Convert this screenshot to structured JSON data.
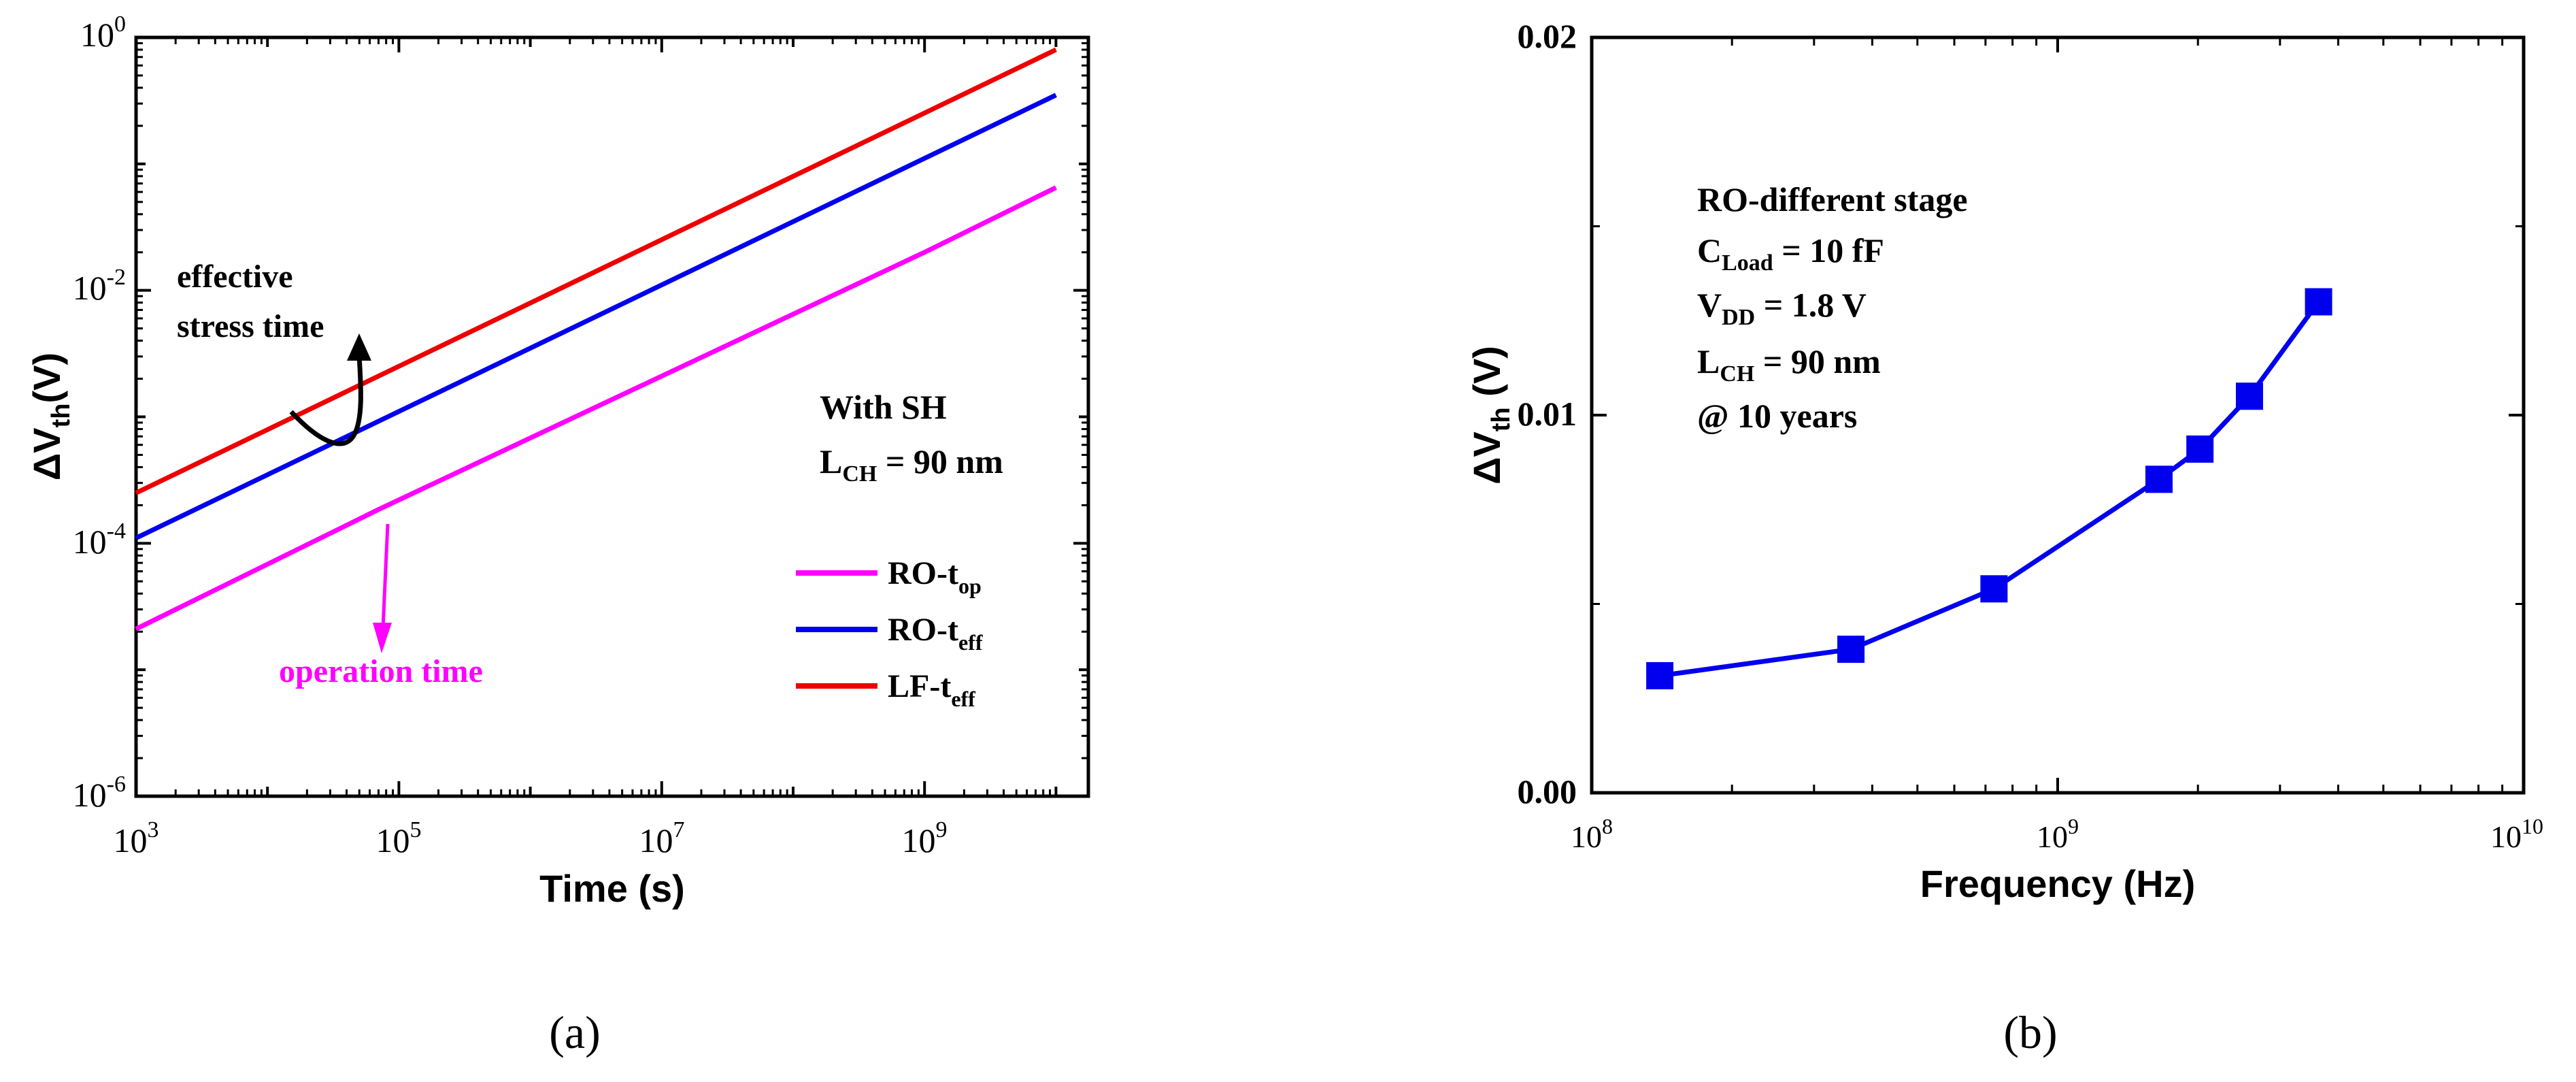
{
  "colors": {
    "ro_top": "#ff00ff",
    "ro_teff": "#0000ee",
    "lf_teff": "#ee0000",
    "markers": "#0000ee",
    "axis": "#000000",
    "annotation_op": "#ff00ff"
  },
  "chart_data": [
    {
      "id": "a",
      "panel_label": "(a)",
      "type": "line",
      "xscale": "log",
      "yscale": "log",
      "xlim": [
        1000,
        20000000000
      ],
      "ylim": [
        1e-06,
        1
      ],
      "xlabel": "Time (s)",
      "ylabel": {
        "prefix": "ΔV",
        "sub": "th",
        "suffix": "(V)"
      },
      "x_ticks": [
        {
          "base": "10",
          "exp": "3",
          "value": 1000
        },
        {
          "base": "10",
          "exp": "5",
          "value": 100000
        },
        {
          "base": "10",
          "exp": "7",
          "value": 10000000
        },
        {
          "base": "10",
          "exp": "9",
          "value": 1000000000
        }
      ],
      "y_ticks": [
        {
          "base": "10",
          "exp": "-6",
          "value": 1e-06
        },
        {
          "base": "10",
          "exp": "-4",
          "value": 0.0001
        },
        {
          "base": "10",
          "exp": "-2",
          "value": 0.01
        },
        {
          "base": "10",
          "exp": "0",
          "value": 1
        }
      ],
      "series": [
        {
          "name": "RO-t",
          "sub": "op",
          "color_key": "ro_top",
          "x": [
            1000,
            70000,
            1000000000,
            10000000000
          ],
          "y": [
            2.1e-05,
            0.000185,
            0.02,
            0.065
          ]
        },
        {
          "name": "RO-t",
          "sub": "eff",
          "color_key": "ro_teff",
          "x": [
            1000,
            10000000000
          ],
          "y": [
            0.00011,
            0.35
          ]
        },
        {
          "name": "LF-t",
          "sub": "eff",
          "color_key": "lf_teff",
          "x": [
            1000,
            10000000000
          ],
          "y": [
            0.00025,
            0.8
          ]
        }
      ],
      "legend_position": "bottom-right",
      "condition_text": {
        "line1": "With SH",
        "line2_prefix": "L",
        "line2_sub": "CH",
        "line2_suffix": " = 90 nm"
      },
      "annotations": {
        "effective_line1": "effective",
        "effective_line2": "stress time",
        "operation": "operation time"
      }
    },
    {
      "id": "b",
      "panel_label": "(b)",
      "type": "line",
      "xscale": "log",
      "yscale": "linear",
      "xlim": [
        100000000,
        10000000000
      ],
      "ylim": [
        0,
        0.02
      ],
      "xlabel": "Frequency (Hz)",
      "ylabel": {
        "prefix": "ΔV",
        "sub": "th",
        "suffix": " (V)"
      },
      "x_ticks": [
        {
          "base": "10",
          "exp": "8",
          "value": 100000000
        },
        {
          "base": "10",
          "exp": "9",
          "value": 1000000000
        },
        {
          "base": "10",
          "exp": "10",
          "value": 10000000000
        }
      ],
      "y_ticks": [
        {
          "label": "0.00",
          "value": 0
        },
        {
          "label": "0.01",
          "value": 0.01
        },
        {
          "label": "0.02",
          "value": 0.02
        }
      ],
      "series": [
        {
          "name": "RO-different stage",
          "color_key": "markers",
          "marker": "square",
          "x": [
            140000000,
            360000000,
            730000000,
            1650000000,
            2020000000,
            2580000000,
            3630000000
          ],
          "y": [
            0.0031,
            0.0038,
            0.0054,
            0.0083,
            0.0091,
            0.0105,
            0.013
          ]
        }
      ],
      "conditions": {
        "title": "RO-different stage",
        "cload_prefix": "C",
        "cload_sub": "Load",
        "cload_suffix": " = 10 fF",
        "vdd_prefix": "V",
        "vdd_sub": "DD",
        "vdd_suffix": " = 1.8 V",
        "lch_prefix": "L",
        "lch_sub": "CH",
        "lch_suffix": " = 90 nm",
        "time": "@ 10 years"
      }
    }
  ]
}
